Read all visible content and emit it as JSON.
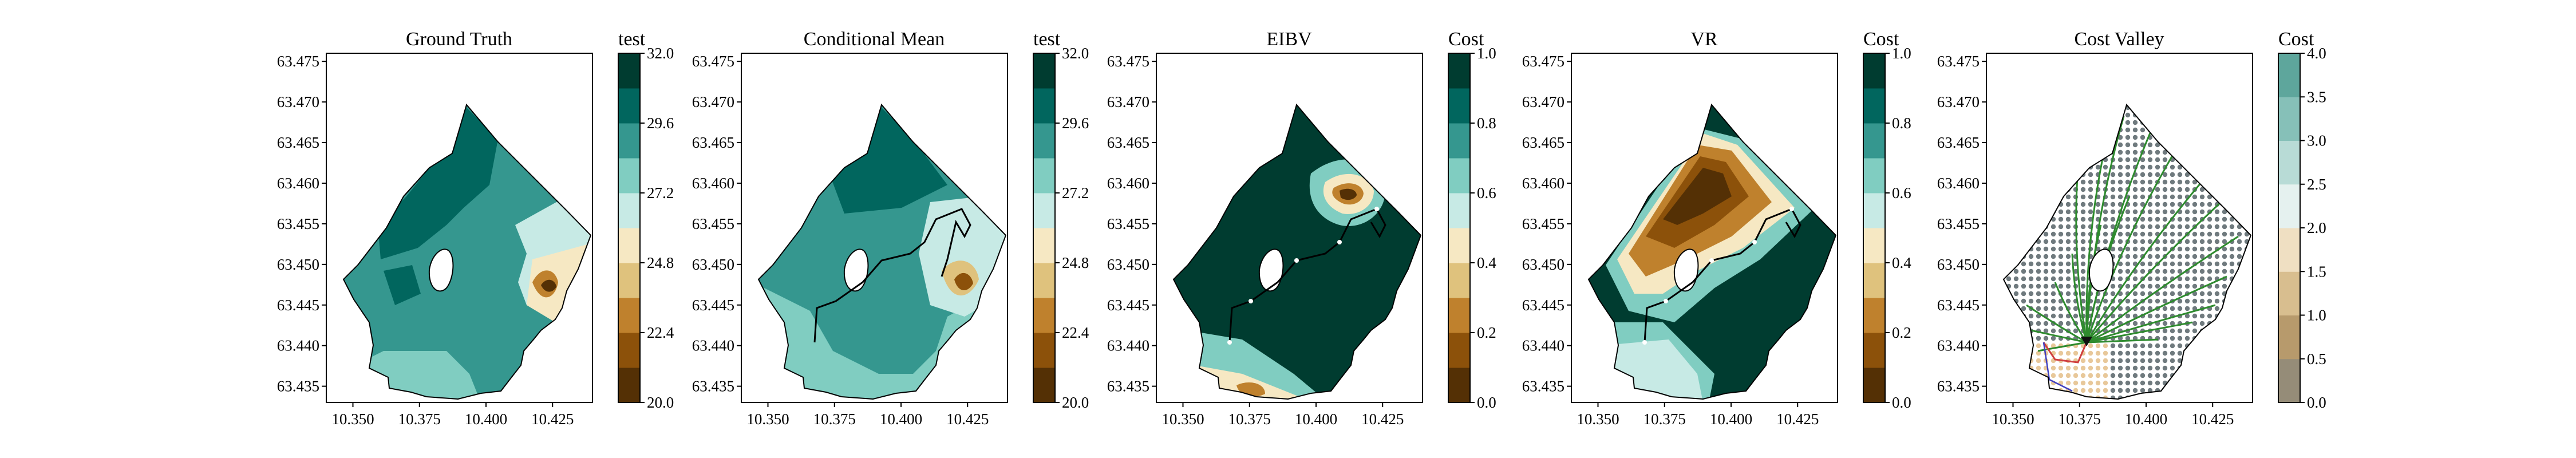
{
  "chart_data": [
    {
      "type": "contour",
      "title": "Ground Truth",
      "colorbar": {
        "label": "test",
        "ticks": [
          "20.0",
          "22.4",
          "24.8",
          "27.2",
          "29.6",
          "32.0"
        ],
        "range": [
          20.0,
          32.0
        ]
      },
      "xticks": [
        "10.350",
        "10.375",
        "10.400",
        "10.425"
      ],
      "yticks": [
        "63.435",
        "63.440",
        "63.445",
        "63.450",
        "63.455",
        "63.460",
        "63.465",
        "63.470",
        "63.475"
      ],
      "xlim": [
        10.34,
        10.44
      ],
      "ylim": [
        63.433,
        63.476
      ]
    },
    {
      "type": "contour",
      "title": "Conditional Mean",
      "colorbar": {
        "label": "test",
        "ticks": [
          "20.0",
          "22.4",
          "24.8",
          "27.2",
          "29.6",
          "32.0"
        ],
        "range": [
          20.0,
          32.0
        ]
      },
      "xticks": [
        "10.350",
        "10.375",
        "10.400",
        "10.425"
      ],
      "yticks": [
        "63.435",
        "63.440",
        "63.445",
        "63.450",
        "63.455",
        "63.460",
        "63.465",
        "63.470",
        "63.475"
      ],
      "xlim": [
        10.34,
        10.44
      ],
      "ylim": [
        63.433,
        63.476
      ]
    },
    {
      "type": "contour",
      "title": "EIBV",
      "colorbar": {
        "label": "Cost",
        "ticks": [
          "0.0",
          "0.2",
          "0.4",
          "0.6",
          "0.8",
          "1.0"
        ],
        "range": [
          0.0,
          1.0
        ]
      },
      "xticks": [
        "10.350",
        "10.375",
        "10.400",
        "10.425"
      ],
      "yticks": [
        "63.435",
        "63.440",
        "63.445",
        "63.450",
        "63.455",
        "63.460",
        "63.465",
        "63.470",
        "63.475"
      ],
      "xlim": [
        10.34,
        10.44
      ],
      "ylim": [
        63.433,
        63.476
      ]
    },
    {
      "type": "contour",
      "title": "VR",
      "colorbar": {
        "label": "Cost",
        "ticks": [
          "0.0",
          "0.2",
          "0.4",
          "0.6",
          "0.8",
          "1.0"
        ],
        "range": [
          0.0,
          1.0
        ]
      },
      "xticks": [
        "10.350",
        "10.375",
        "10.400",
        "10.425"
      ],
      "yticks": [
        "63.435",
        "63.440",
        "63.445",
        "63.450",
        "63.455",
        "63.460",
        "63.465",
        "63.470",
        "63.475"
      ],
      "xlim": [
        10.34,
        10.44
      ],
      "ylim": [
        63.433,
        63.476
      ]
    },
    {
      "type": "scatter",
      "title": "Cost Valley",
      "colorbar": {
        "label": "Cost",
        "ticks": [
          "0.0",
          "0.5",
          "1.0",
          "1.5",
          "2.0",
          "2.5",
          "3.0",
          "3.5",
          "4.0"
        ],
        "range": [
          0.0,
          4.0
        ]
      },
      "xticks": [
        "10.350",
        "10.375",
        "10.400",
        "10.425"
      ],
      "yticks": [
        "63.435",
        "63.440",
        "63.445",
        "63.450",
        "63.455",
        "63.460",
        "63.465",
        "63.470",
        "63.475"
      ],
      "xlim": [
        10.34,
        10.44
      ],
      "ylim": [
        63.433,
        63.476
      ]
    }
  ],
  "colors": {
    "scale": [
      "#543005",
      "#8c510a",
      "#bf812d",
      "#dfc27d",
      "#f6e8c3",
      "#c7eae5",
      "#80cdc1",
      "#35978f",
      "#01665e",
      "#003c30"
    ],
    "path": "#000000",
    "tree": "#2e8b2e",
    "dots": "#7a7a7a"
  }
}
